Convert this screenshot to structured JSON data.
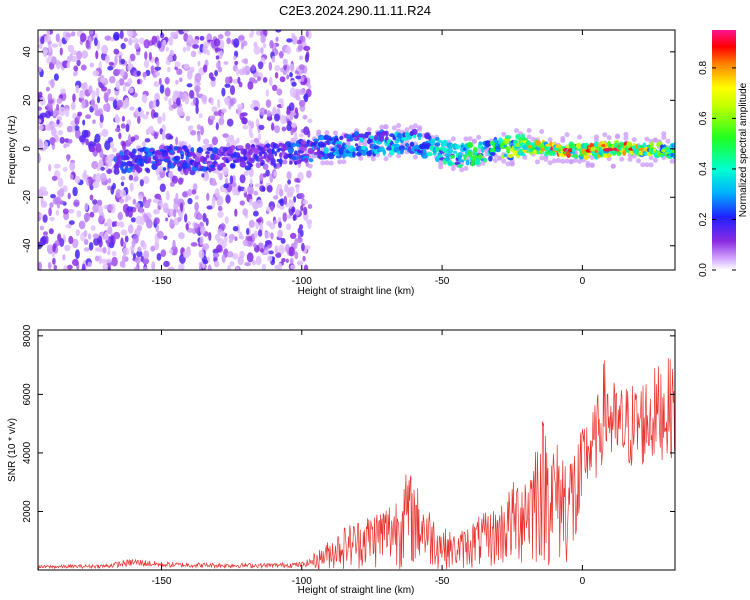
{
  "title": "C2E3.2024.290.11.11.R24",
  "chart_data": [
    {
      "type": "heatmap",
      "xlabel": "Height of straight line (km)",
      "ylabel": "Frequency (Hz)",
      "xlim": [
        -194,
        33
      ],
      "ylim": [
        -50,
        49
      ],
      "xticks": [
        -150,
        -100,
        -50,
        0
      ],
      "yticks": [
        -40,
        -20,
        0,
        20,
        40
      ],
      "colorbar": {
        "label": "Normalized spectral amplitude",
        "range": [
          0,
          0.95
        ],
        "ticks": [
          0.0,
          0.2,
          0.4,
          0.6,
          0.8
        ]
      },
      "ridge": [
        {
          "x": -165,
          "y": -5,
          "amp": 0.25
        },
        {
          "x": -150,
          "y": -4,
          "amp": 0.25
        },
        {
          "x": -130,
          "y": -4,
          "amp": 0.22
        },
        {
          "x": -110,
          "y": -3,
          "amp": 0.2
        },
        {
          "x": -95,
          "y": 0,
          "amp": 0.3
        },
        {
          "x": -80,
          "y": 2,
          "amp": 0.35
        },
        {
          "x": -60,
          "y": 3,
          "amp": 0.4
        },
        {
          "x": -45,
          "y": -3,
          "amp": 0.45
        },
        {
          "x": -30,
          "y": 0,
          "amp": 0.55
        },
        {
          "x": -20,
          "y": 1,
          "amp": 0.7
        },
        {
          "x": -10,
          "y": 0,
          "amp": 0.85
        },
        {
          "x": 0,
          "y": -1,
          "amp": 0.8
        },
        {
          "x": 15,
          "y": 0,
          "amp": 0.85
        },
        {
          "x": 33,
          "y": -1,
          "amp": 0.5
        }
      ]
    },
    {
      "type": "line",
      "xlabel": "Height of straight line (km)",
      "ylabel": "SNR (10 * v/v)",
      "xlim": [
        -194,
        33
      ],
      "ylim": [
        0,
        8200
      ],
      "xticks": [
        -150,
        -100,
        -50,
        0
      ],
      "yticks": [
        2000,
        4000,
        6000,
        8000
      ],
      "series": [
        {
          "color": "#e8332f",
          "envelope": [
            [
              -194,
              200
            ],
            [
              -170,
              250
            ],
            [
              -160,
              500
            ],
            [
              -150,
              350
            ],
            [
              -130,
              300
            ],
            [
              -110,
              300
            ],
            [
              -100,
              350
            ],
            [
              -95,
              600
            ],
            [
              -85,
              1500
            ],
            [
              -75,
              2000
            ],
            [
              -67,
              2500
            ],
            [
              -62,
              3500
            ],
            [
              -55,
              2200
            ],
            [
              -50,
              1500
            ],
            [
              -45,
              1200
            ],
            [
              -38,
              1800
            ],
            [
              -30,
              2200
            ],
            [
              -25,
              3000
            ],
            [
              -18,
              4000
            ],
            [
              -15,
              5500
            ],
            [
              -10,
              4500
            ],
            [
              -5,
              4200
            ],
            [
              0,
              4800
            ],
            [
              5,
              5500
            ],
            [
              8,
              7000
            ],
            [
              12,
              6000
            ],
            [
              20,
              6200
            ],
            [
              28,
              6800
            ],
            [
              33,
              7000
            ]
          ]
        }
      ]
    }
  ]
}
